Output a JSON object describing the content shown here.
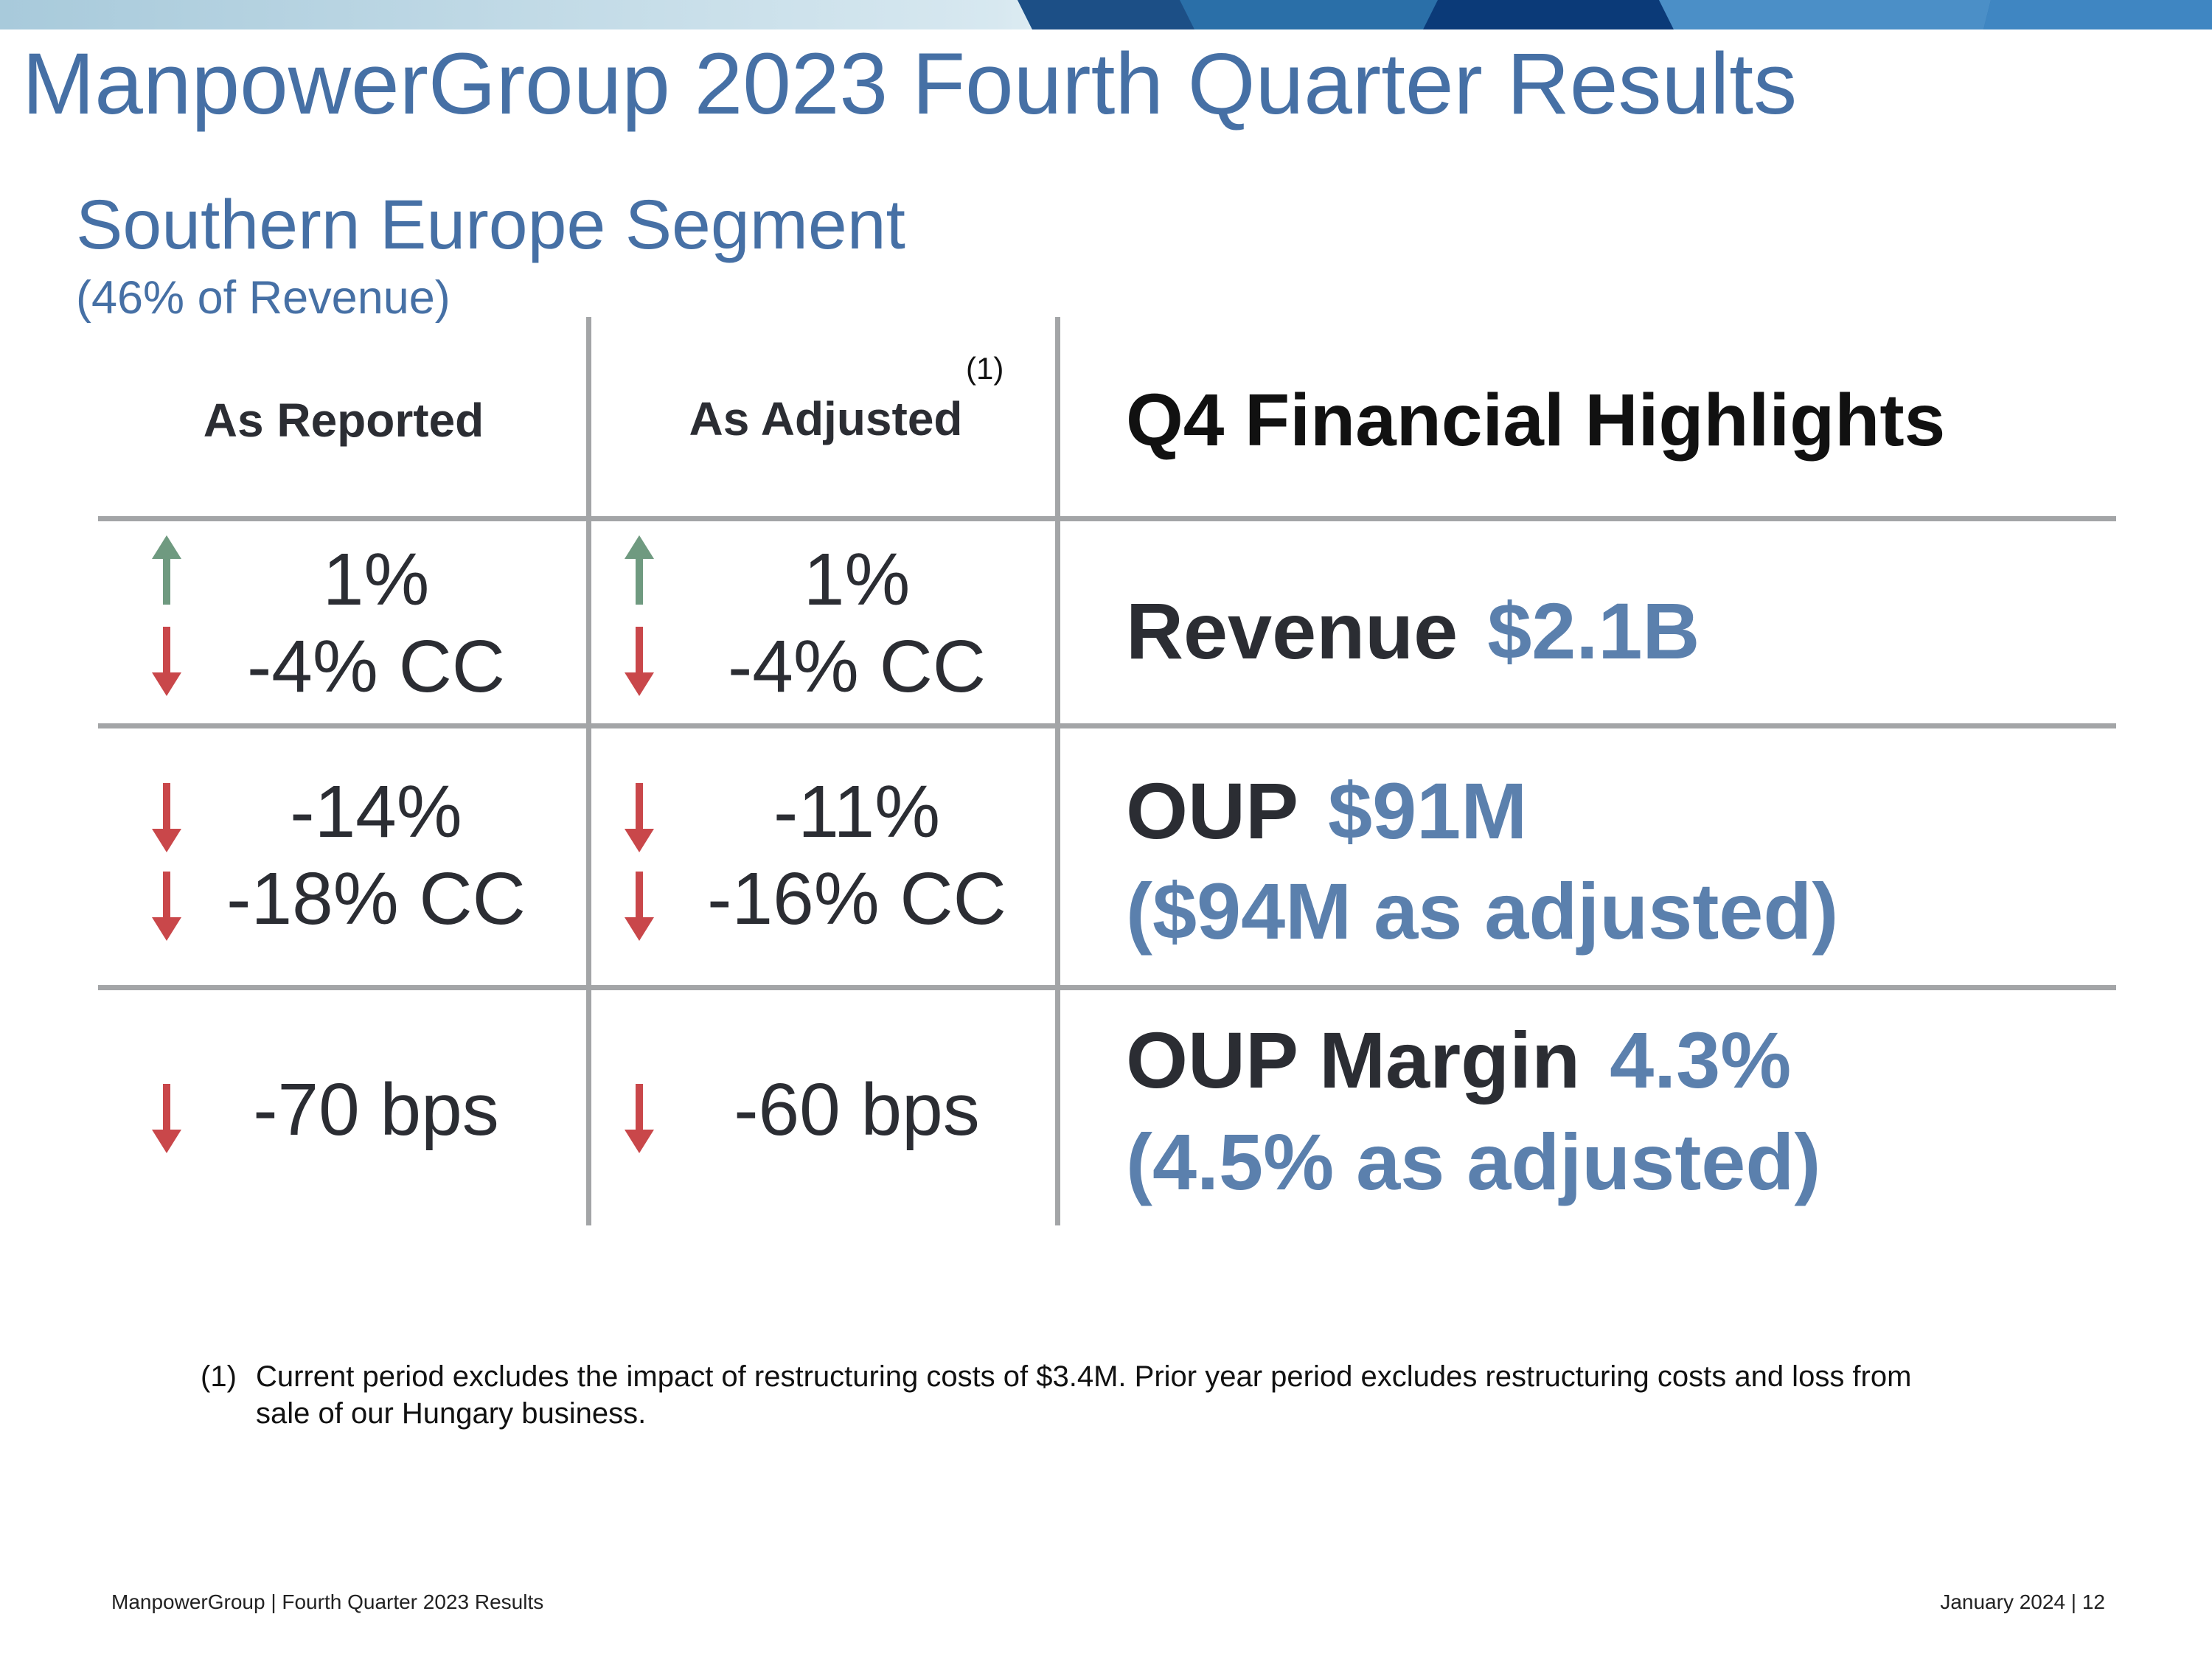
{
  "header": {
    "title": "ManpowerGroup 2023 Fourth Quarter Results"
  },
  "segment": {
    "title": "Southern Europe Segment",
    "subtitle": "(46% of Revenue)"
  },
  "table": {
    "col_reported": "As Reported",
    "col_adjusted": "As Adjusted",
    "adjusted_footnote_ref": "(1)",
    "highlights_title": "Q4 Financial Highlights",
    "rows": [
      {
        "reported": [
          "1%",
          "-4% CC"
        ],
        "reported_dirs": [
          "up",
          "down"
        ],
        "adjusted": [
          "1%",
          "-4% CC"
        ],
        "adjusted_dirs": [
          "up",
          "down"
        ],
        "highlight_label": "Revenue",
        "highlight_value": "$2.1B",
        "highlight_note": ""
      },
      {
        "reported": [
          "-14%",
          "-18% CC"
        ],
        "reported_dirs": [
          "down",
          "down"
        ],
        "adjusted": [
          "-11%",
          "-16% CC"
        ],
        "adjusted_dirs": [
          "down",
          "down"
        ],
        "highlight_label": "OUP",
        "highlight_value": "$91M",
        "highlight_note": "($94M as adjusted)"
      },
      {
        "reported": [
          "-70 bps"
        ],
        "reported_dirs": [
          "down"
        ],
        "adjusted": [
          "-60 bps"
        ],
        "adjusted_dirs": [
          "down"
        ],
        "highlight_label": "OUP Margin",
        "highlight_value": "4.3%",
        "highlight_note": "(4.5% as adjusted)"
      }
    ]
  },
  "footnote": {
    "marker": "(1)",
    "text": "Current period excludes the impact of restructuring costs of $3.4M. Prior year period excludes restructuring costs and loss from sale of our Hungary business."
  },
  "footer": {
    "left": "ManpowerGroup  |  Fourth Quarter 2023 Results",
    "right": "January 2024   |   12"
  },
  "colors": {
    "title_blue": "#4670a5",
    "value_blue": "#5b80ad",
    "arrow_up": "#6f9a80",
    "arrow_down": "#c9474a",
    "grid": "#a3a5a7"
  }
}
